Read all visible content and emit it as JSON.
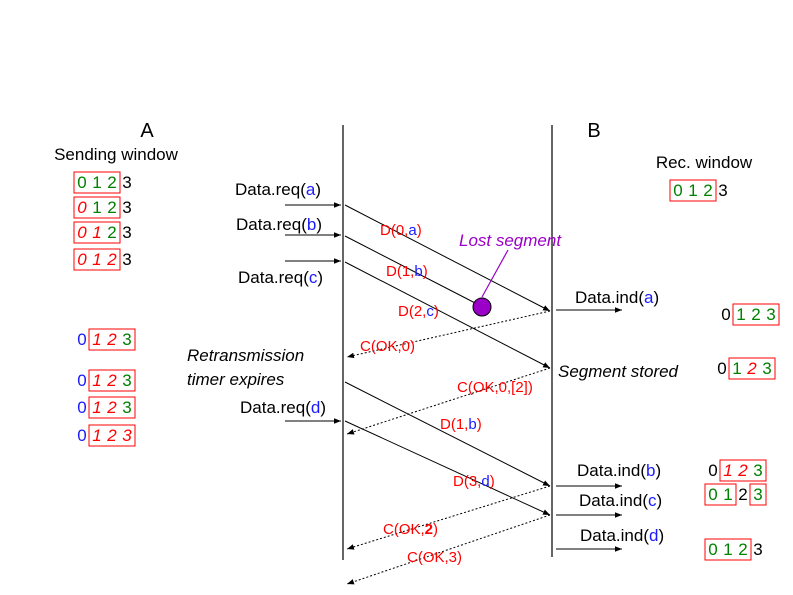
{
  "entity_a": "A",
  "entity_b": "B",
  "sending_window_title": "Sending window",
  "rec_window_title": "Rec. window",
  "colors": {
    "blue": "#1a1aff",
    "red": "#ff0000",
    "green": "#008000",
    "purple": "#9b00c8",
    "black": "#000000"
  },
  "sending_windows": [
    {
      "cells": [
        {
          "t": "0",
          "c": "green",
          "i": false
        },
        {
          "t": "1",
          "c": "green",
          "i": false
        },
        {
          "t": "2",
          "c": "green",
          "i": false
        },
        {
          "t": "3",
          "c": "black",
          "i": false
        }
      ],
      "box": [
        0,
        2
      ]
    },
    {
      "cells": [
        {
          "t": "0",
          "c": "red",
          "i": true
        },
        {
          "t": "1",
          "c": "green",
          "i": false
        },
        {
          "t": "2",
          "c": "green",
          "i": false
        },
        {
          "t": "3",
          "c": "black",
          "i": false
        }
      ],
      "box": [
        0,
        2
      ]
    },
    {
      "cells": [
        {
          "t": "0",
          "c": "red",
          "i": true
        },
        {
          "t": "1",
          "c": "red",
          "i": true
        },
        {
          "t": "2",
          "c": "green",
          "i": false
        },
        {
          "t": "3",
          "c": "black",
          "i": false
        }
      ],
      "box": [
        0,
        2
      ]
    },
    {
      "cells": [
        {
          "t": "0",
          "c": "red",
          "i": true
        },
        {
          "t": "1",
          "c": "red",
          "i": true
        },
        {
          "t": "2",
          "c": "red",
          "i": true
        },
        {
          "t": "3",
          "c": "black",
          "i": false
        }
      ],
      "box": [
        0,
        2
      ]
    },
    {
      "cells": [
        {
          "t": "0",
          "c": "blue",
          "i": false
        },
        {
          "t": "1",
          "c": "red",
          "i": true
        },
        {
          "t": "2",
          "c": "red",
          "i": true
        },
        {
          "t": "3",
          "c": "green",
          "i": false
        }
      ],
      "box": [
        1,
        3
      ]
    },
    {
      "cells": [
        {
          "t": "0",
          "c": "blue",
          "i": false
        },
        {
          "t": "1",
          "c": "red",
          "i": true
        },
        {
          "t": "2",
          "c": "red",
          "i": true
        },
        {
          "t": "3",
          "c": "green",
          "i": false
        }
      ],
      "box": [
        1,
        3
      ]
    },
    {
      "cells": [
        {
          "t": "0",
          "c": "blue",
          "i": false
        },
        {
          "t": "1",
          "c": "red",
          "i": true
        },
        {
          "t": "2",
          "c": "red",
          "i": true
        },
        {
          "t": "3",
          "c": "green",
          "i": false
        }
      ],
      "box": [
        1,
        3
      ]
    },
    {
      "cells": [
        {
          "t": "0",
          "c": "blue",
          "i": false
        },
        {
          "t": "1",
          "c": "red",
          "i": true
        },
        {
          "t": "2",
          "c": "red",
          "i": true
        },
        {
          "t": "3",
          "c": "red",
          "i": true
        }
      ],
      "box": [
        1,
        3
      ]
    }
  ],
  "receiving_windows": [
    {
      "cells": [
        {
          "t": "0",
          "c": "green",
          "i": false
        },
        {
          "t": "1",
          "c": "green",
          "i": false
        },
        {
          "t": "2",
          "c": "green",
          "i": false
        },
        {
          "t": "3",
          "c": "black",
          "i": false
        }
      ],
      "box": [
        0,
        2
      ]
    },
    {
      "cells": [
        {
          "t": "0",
          "c": "black",
          "i": false
        },
        {
          "t": "1",
          "c": "green",
          "i": false
        },
        {
          "t": "2",
          "c": "green",
          "i": false
        },
        {
          "t": "3",
          "c": "green",
          "i": false
        }
      ],
      "box": [
        1,
        3
      ]
    },
    {
      "cells": [
        {
          "t": "0",
          "c": "black",
          "i": false
        },
        {
          "t": "1",
          "c": "green",
          "i": false
        },
        {
          "t": "2",
          "c": "red",
          "i": true
        },
        {
          "t": "3",
          "c": "green",
          "i": false
        }
      ],
      "box": [
        1,
        3
      ]
    },
    {
      "cells": [
        {
          "t": "0",
          "c": "black",
          "i": false
        },
        {
          "t": "1",
          "c": "red",
          "i": true
        },
        {
          "t": "2",
          "c": "red",
          "i": true
        },
        {
          "t": "3",
          "c": "green",
          "i": false
        }
      ],
      "box": [
        1,
        3
      ]
    },
    {
      "cells": [
        {
          "t": "0",
          "c": "green",
          "i": false
        },
        {
          "t": "1",
          "c": "green",
          "i": false
        },
        {
          "t": "2",
          "c": "black",
          "i": false
        },
        {
          "t": "3",
          "c": "green",
          "i": false
        }
      ],
      "box": [
        0,
        1
      ],
      "box2": [
        3,
        3
      ]
    },
    {
      "cells": [
        {
          "t": "0",
          "c": "green",
          "i": false
        },
        {
          "t": "1",
          "c": "green",
          "i": false
        },
        {
          "t": "2",
          "c": "green",
          "i": false
        },
        {
          "t": "3",
          "c": "black",
          "i": false
        }
      ],
      "box": [
        0,
        2
      ]
    }
  ],
  "requests": [
    {
      "prefix": "Data.req(",
      "arg": "a",
      "suffix": ")"
    },
    {
      "prefix": "Data.req(",
      "arg": "b",
      "suffix": ")"
    },
    {
      "prefix": "Data.req(",
      "arg": "c",
      "suffix": ")"
    },
    {
      "prefix": "Data.req(",
      "arg": "d",
      "suffix": ")"
    }
  ],
  "indications": [
    {
      "prefix": "Data.ind(",
      "arg": "a",
      "suffix": ")"
    },
    {
      "prefix": "Data.ind(",
      "arg": "b",
      "suffix": ")"
    },
    {
      "prefix": "Data.ind(",
      "arg": "c",
      "suffix": ")"
    },
    {
      "prefix": "Data.ind(",
      "arg": "d",
      "suffix": ")"
    }
  ],
  "messages": [
    {
      "parts": [
        {
          "t": "D(0,",
          "c": "red"
        },
        {
          "t": "a",
          "c": "blue"
        },
        {
          "t": ")",
          "c": "red"
        }
      ]
    },
    {
      "parts": [
        {
          "t": "D(1,",
          "c": "red"
        },
        {
          "t": "b",
          "c": "blue"
        },
        {
          "t": ")",
          "c": "red"
        }
      ]
    },
    {
      "parts": [
        {
          "t": "D(2,",
          "c": "red"
        },
        {
          "t": "c",
          "c": "blue"
        },
        {
          "t": ")",
          "c": "red"
        }
      ]
    },
    {
      "parts": [
        {
          "t": "C(OK,0)",
          "c": "red"
        }
      ]
    },
    {
      "parts": [
        {
          "t": "C(OK,0,[2])",
          "c": "red"
        }
      ]
    },
    {
      "parts": [
        {
          "t": "D(1,",
          "c": "red"
        },
        {
          "t": "b",
          "c": "blue"
        },
        {
          "t": ")",
          "c": "red"
        }
      ]
    },
    {
      "parts": [
        {
          "t": "D(3,",
          "c": "red"
        },
        {
          "t": "d",
          "c": "blue"
        },
        {
          "t": ")",
          "c": "red"
        }
      ]
    },
    {
      "parts": [
        {
          "t": "C(OK,",
          "c": "red"
        },
        {
          "t": "2",
          "c": "red",
          "b": true
        },
        {
          "t": ")",
          "c": "red"
        }
      ]
    },
    {
      "parts": [
        {
          "t": "C(OK,3)",
          "c": "red"
        }
      ]
    }
  ],
  "lost_segment": "Lost segment",
  "segment_stored": "Segment stored",
  "retransmission_line1": "Retransmission",
  "retransmission_line2": "timer expires"
}
